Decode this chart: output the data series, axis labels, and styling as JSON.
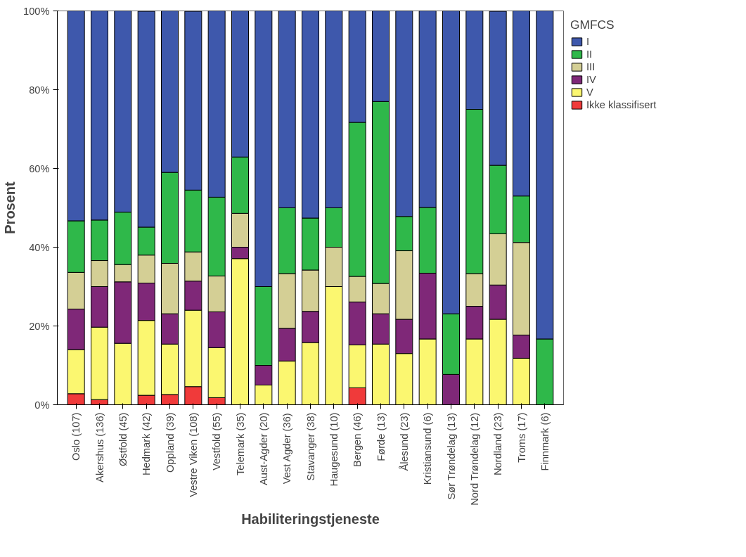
{
  "chart_data": {
    "type": "bar",
    "stacked": true,
    "xlabel": "Habiliteringstjeneste",
    "ylabel": "Prosent",
    "legend_title": "GMFCS",
    "legend": "right",
    "grid": false,
    "categories": [
      "Oslo (107)",
      "Akershus (136)",
      "Østfold (45)",
      "Hedmark (42)",
      "Oppland (39)",
      "Vestre Viken (108)",
      "Vestfold (55)",
      "Telemark (35)",
      "Aust-Agder (20)",
      "Vest Agder (36)",
      "Stavanger (38)",
      "Haugesund (10)",
      "Bergen (46)",
      "Førde (13)",
      "Ålesund (23)",
      "Kristiansund (6)",
      "Sør Trøndelag (13)",
      "Nord Trøndelag (12)",
      "Nordland (23)",
      "Troms (17)",
      "Finnmark (6)"
    ],
    "ylim": [
      0,
      100
    ],
    "yticks": [
      {
        "value": 0,
        "label": "0%"
      },
      {
        "value": 20,
        "label": "20%"
      },
      {
        "value": 40,
        "label": "40%"
      },
      {
        "value": 60,
        "label": "60%"
      },
      {
        "value": 80,
        "label": "80%"
      },
      {
        "value": 100,
        "label": "100%"
      }
    ],
    "series": [
      {
        "name": "Ikke klassifisert",
        "color": "#f03a3a",
        "values": [
          2.8,
          1.3,
          0,
          2.4,
          2.6,
          4.6,
          1.8,
          0,
          0,
          0,
          0,
          0,
          4.3,
          0,
          0,
          0,
          0,
          0,
          0,
          0,
          0
        ]
      },
      {
        "name": "V",
        "color": "#fbf770",
        "values": [
          11.2,
          18.4,
          15.6,
          19.0,
          12.8,
          19.4,
          12.7,
          37.1,
          5.0,
          11.1,
          15.8,
          30.0,
          10.9,
          15.4,
          13.0,
          16.7,
          0,
          16.7,
          21.7,
          11.8,
          0
        ]
      },
      {
        "name": "IV",
        "color": "#7f2878",
        "values": [
          10.3,
          10.3,
          15.6,
          9.5,
          7.7,
          7.4,
          9.1,
          2.9,
          5.0,
          8.3,
          7.9,
          0,
          10.9,
          7.7,
          8.7,
          16.7,
          7.7,
          8.3,
          8.7,
          5.9,
          0
        ]
      },
      {
        "name": "III",
        "color": "#d4cf95",
        "values": [
          9.3,
          6.6,
          4.4,
          7.1,
          12.8,
          7.4,
          9.1,
          8.6,
          0,
          13.9,
          10.5,
          10.0,
          6.5,
          7.7,
          17.4,
          0,
          0,
          8.3,
          13.0,
          23.5,
          0
        ]
      },
      {
        "name": "II",
        "color": "#2fb84a",
        "values": [
          13.1,
          10.3,
          13.3,
          7.1,
          23.1,
          15.7,
          20.0,
          14.3,
          20.0,
          16.7,
          13.2,
          10.0,
          39.1,
          46.2,
          8.7,
          16.7,
          15.4,
          41.7,
          17.4,
          11.8,
          16.7
        ]
      },
      {
        "name": "I",
        "color": "#3e58ac",
        "values": [
          53.3,
          53.1,
          51.1,
          54.8,
          41.0,
          45.4,
          47.3,
          37.1,
          70.0,
          50.0,
          52.6,
          50.0,
          28.3,
          23.1,
          52.2,
          50.0,
          76.9,
          25.0,
          39.1,
          47.1,
          83.3
        ]
      }
    ]
  }
}
